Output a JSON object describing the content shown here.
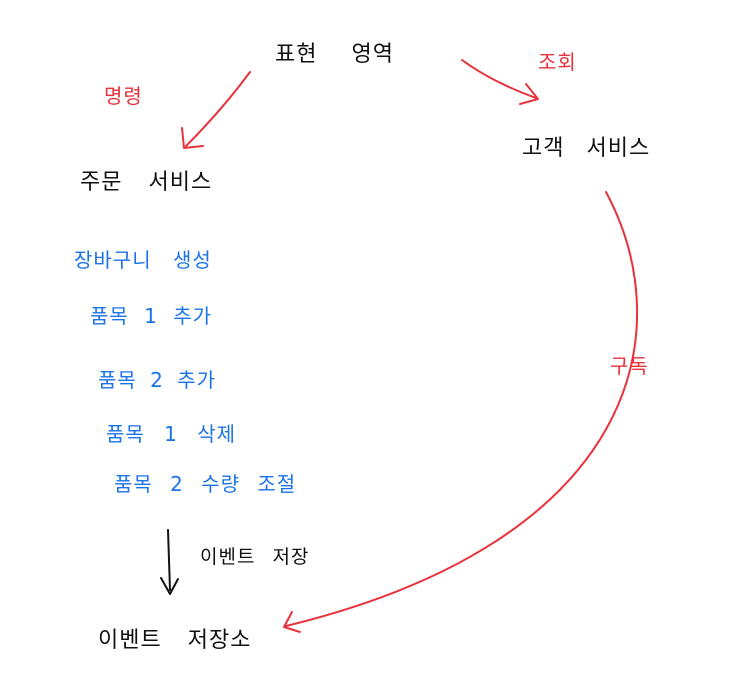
{
  "colors": {
    "ink": "#111111",
    "accent_red": "#e8323c",
    "accent_blue": "#1a73e8",
    "background": "#ffffff"
  },
  "nodes": {
    "top": "표현 영역",
    "left": "주문 서비스",
    "right": "고객 서비스",
    "bottom": "이벤트 저장소"
  },
  "edges": {
    "command": "명령",
    "query": "조회",
    "subscribe": "구독",
    "store_events": "이벤트 저장"
  },
  "events": [
    "장바구니 생성",
    "품목 1 추가",
    "품목 2 추가",
    "품목 1 삭제",
    "품목 2 수량 조절"
  ]
}
